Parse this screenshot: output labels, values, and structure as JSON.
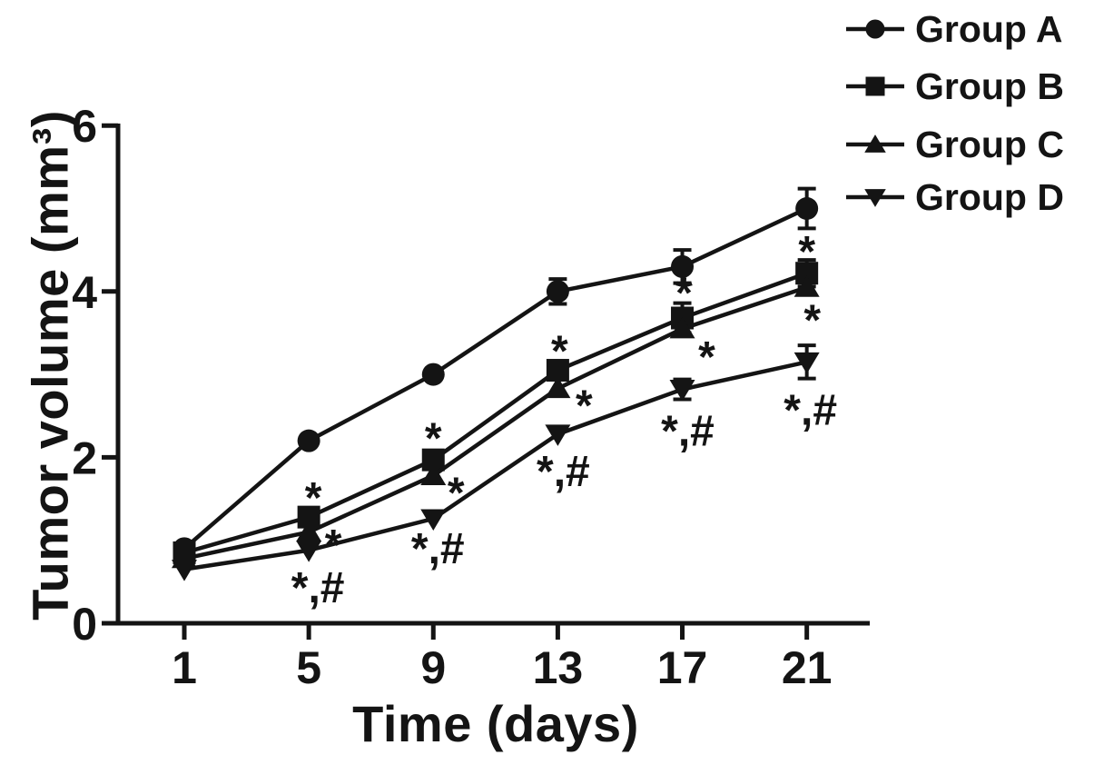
{
  "figure": {
    "background": "#ffffff",
    "ink": "#141414"
  },
  "chart_data": {
    "type": "line",
    "title": "",
    "xlabel": "Time (days)",
    "ylabel": "Tumor volume (mm³)",
    "x": [
      1,
      5,
      9,
      13,
      17,
      21
    ],
    "x_tick_labels": [
      "1",
      "5",
      "9",
      "13",
      "17",
      "21"
    ],
    "y_tick_values": [
      0,
      2,
      4,
      6
    ],
    "y_tick_labels": [
      "0",
      "2",
      "4",
      "6"
    ],
    "xlim": [
      -1,
      23
    ],
    "ylim": [
      0,
      6
    ],
    "grid": false,
    "legend_position": "top-right",
    "series": [
      {
        "name": "Group A",
        "marker": "circle",
        "values": [
          0.9,
          2.2,
          3.0,
          4.0,
          4.3,
          5.0
        ],
        "errors": [
          0,
          0,
          0,
          0.15,
          0.2,
          0.24
        ]
      },
      {
        "name": "Group B",
        "marker": "square",
        "values": [
          0.85,
          1.28,
          1.97,
          3.05,
          3.68,
          4.22
        ],
        "errors": [
          0,
          0,
          0,
          0,
          0.18,
          0.16
        ]
      },
      {
        "name": "Group C",
        "marker": "triangle-up",
        "values": [
          0.78,
          1.1,
          1.78,
          2.83,
          3.55,
          4.05
        ],
        "errors": [
          0,
          0,
          0,
          0,
          0,
          0
        ]
      },
      {
        "name": "Group D",
        "marker": "triangle-down",
        "values": [
          0.65,
          0.88,
          1.26,
          2.28,
          2.82,
          3.15
        ],
        "errors": [
          0,
          0,
          0,
          0,
          0.12,
          0.2
        ]
      }
    ],
    "annotations": [
      {
        "series": "Group B",
        "symbol": "*",
        "day": 5,
        "y": 1.61,
        "dx": 5
      },
      {
        "series": "Group B",
        "symbol": "*",
        "day": 9,
        "y": 2.33,
        "dx": 0
      },
      {
        "series": "Group B",
        "symbol": "*",
        "day": 13,
        "y": 3.38,
        "dx": 2
      },
      {
        "series": "Group B",
        "symbol": "*",
        "day": 17,
        "y": 4.08,
        "dx": 2
      },
      {
        "series": "Group B",
        "symbol": "*",
        "day": 21,
        "y": 4.58,
        "dx": 0
      },
      {
        "series": "Group C",
        "symbol": "*",
        "day": 5,
        "y": 1.04,
        "dx": 27
      },
      {
        "series": "Group C",
        "symbol": "*",
        "day": 9,
        "y": 1.67,
        "dx": 25
      },
      {
        "series": "Group C",
        "symbol": "*",
        "day": 13,
        "y": 2.72,
        "dx": 29
      },
      {
        "series": "Group C",
        "symbol": "*",
        "day": 17,
        "y": 3.31,
        "dx": 27
      },
      {
        "series": "Group C",
        "symbol": "*",
        "day": 21,
        "y": 3.75,
        "dx": 6
      },
      {
        "series": "Group D",
        "symbol": "*,#",
        "day": 5,
        "y": 0.44,
        "dx": 10
      },
      {
        "series": "Group D",
        "symbol": "*,#",
        "day": 9,
        "y": 0.91,
        "dx": 5
      },
      {
        "series": "Group D",
        "symbol": "*,#",
        "day": 13,
        "y": 1.84,
        "dx": 6
      },
      {
        "series": "Group D",
        "symbol": "*,#",
        "day": 17,
        "y": 2.33,
        "dx": 6
      },
      {
        "series": "Group D",
        "symbol": "*,#",
        "day": 21,
        "y": 2.58,
        "dx": 4
      }
    ]
  }
}
